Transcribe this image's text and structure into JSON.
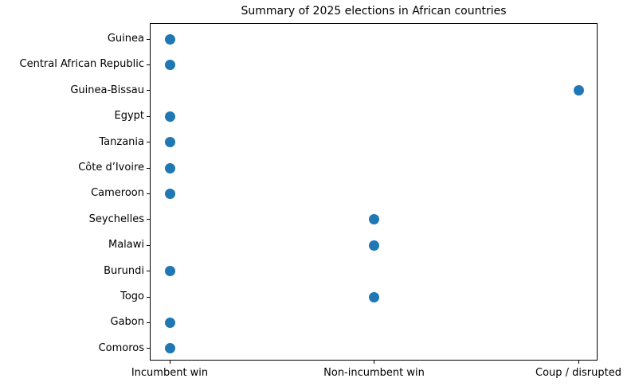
{
  "chart_data": {
    "type": "scatter",
    "title": "Summary of 2025 elections in African countries",
    "x_categories": [
      "Incumbent win",
      "Non-incumbent win",
      "Coup / disrupted"
    ],
    "xlabel": "",
    "ylabel": "",
    "grid": false,
    "legend": false,
    "dot_color": "#1f77b4",
    "rows": [
      {
        "country": "Guinea",
        "outcome": "Incumbent win"
      },
      {
        "country": "Central African Republic",
        "outcome": "Incumbent win"
      },
      {
        "country": "Guinea-Bissau",
        "outcome": "Coup / disrupted"
      },
      {
        "country": "Egypt",
        "outcome": "Incumbent win"
      },
      {
        "country": "Tanzania",
        "outcome": "Incumbent win"
      },
      {
        "country": "Côte d’Ivoire",
        "outcome": "Incumbent win"
      },
      {
        "country": "Cameroon",
        "outcome": "Incumbent win"
      },
      {
        "country": "Seychelles",
        "outcome": "Non-incumbent win"
      },
      {
        "country": "Malawi",
        "outcome": "Non-incumbent win"
      },
      {
        "country": "Burundi",
        "outcome": "Incumbent win"
      },
      {
        "country": "Togo",
        "outcome": "Non-incumbent win"
      },
      {
        "country": "Gabon",
        "outcome": "Incumbent win"
      },
      {
        "country": "Comoros",
        "outcome": "Incumbent win"
      }
    ]
  }
}
